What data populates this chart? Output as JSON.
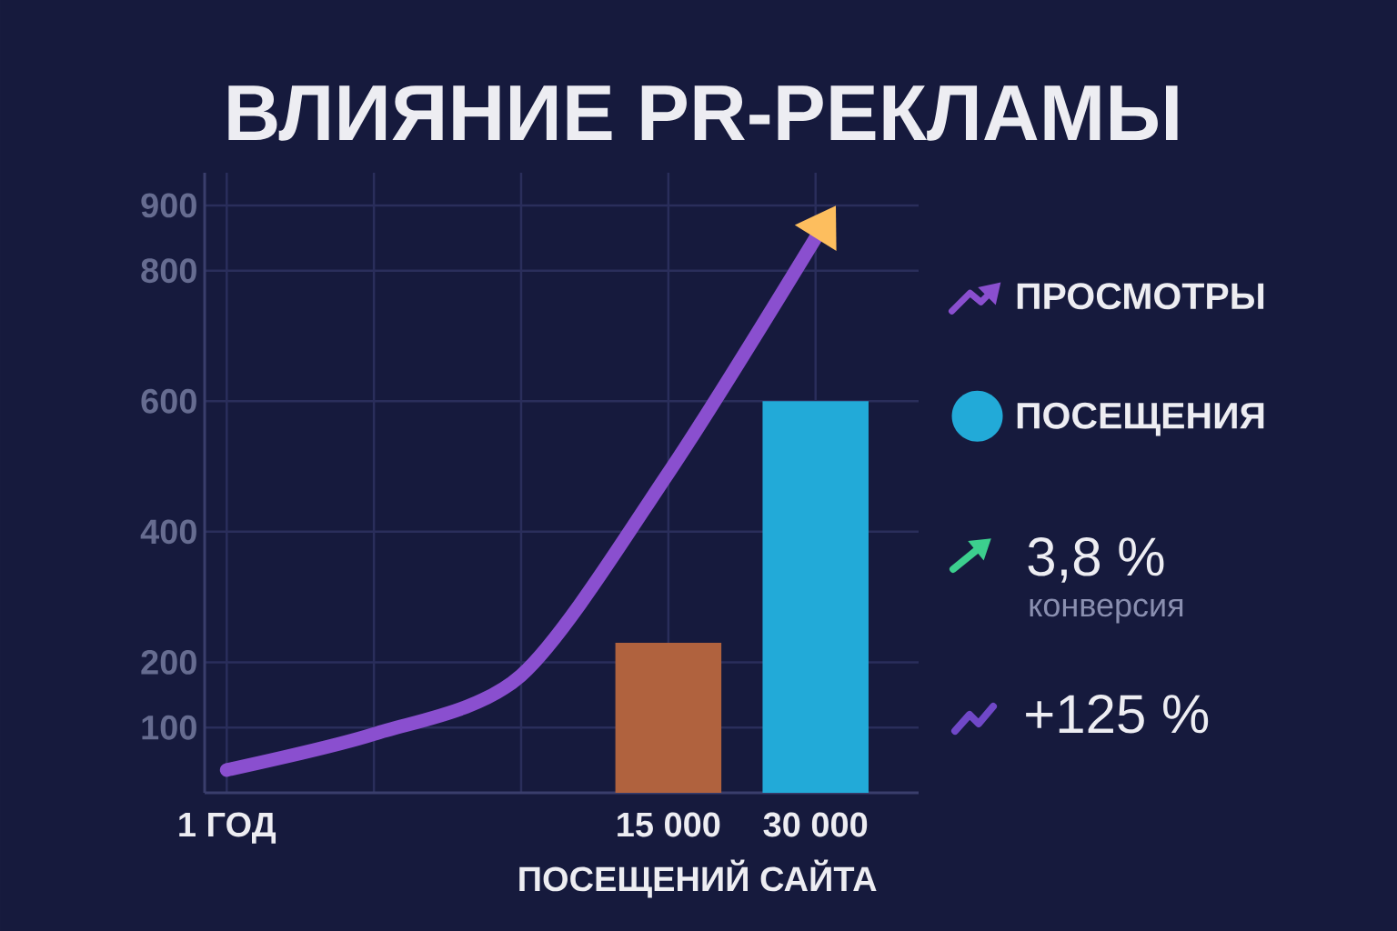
{
  "chart_data": {
    "type": "bar",
    "title": "ВЛИЯНИЕ PR-РЕКЛАМЫ",
    "xlabel": "ПОСЕЩЕНИЙ САЙТА",
    "categories": [
      "1 ГОД",
      null,
      null,
      "15 000",
      "30 000"
    ],
    "series": [
      {
        "name": "ПРОСМОТРЫ",
        "type": "line",
        "color": "#8a4fcf",
        "values": [
          35,
          90,
          180,
          490,
          850
        ]
      },
      {
        "name": "ПОСЕЩЕНИЯ",
        "colors": [
          null,
          null,
          null,
          "#b0623e",
          "#22aad8"
        ],
        "values": [
          null,
          null,
          null,
          230,
          600
        ]
      }
    ],
    "ylim": [
      0,
      950
    ],
    "yticks": [
      100,
      200,
      400,
      600,
      800,
      900
    ],
    "grid": true,
    "legend": "right",
    "annotations": [
      "3,8 %",
      "конверсия",
      "+125 %"
    ]
  }
}
